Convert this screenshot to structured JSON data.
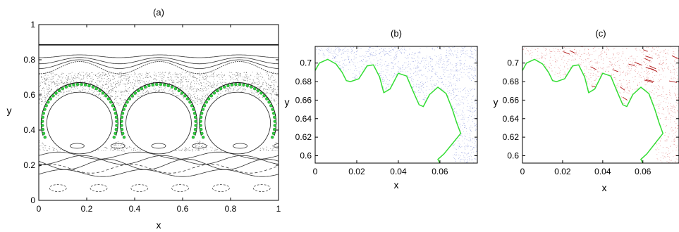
{
  "panels": [
    {
      "id": "a",
      "title": "(a)",
      "xlabel": "x",
      "ylabel": "y",
      "xlim": [
        0,
        1
      ],
      "ylim": [
        0,
        1
      ],
      "xticks": [
        "0",
        "0.2",
        "0.4",
        "0.6",
        "0.8",
        "1"
      ],
      "xtick_values": [
        0,
        0.2,
        0.4,
        0.6,
        0.8,
        1
      ],
      "yticks": [
        "0",
        "0.2",
        "0.4",
        "0.6",
        "0.8",
        "1"
      ],
      "ytick_values": [
        0,
        0.2,
        0.4,
        0.6,
        0.8,
        1
      ]
    },
    {
      "id": "b",
      "title": "(b)",
      "xlabel": "x",
      "ylabel": "y",
      "xlim": [
        0,
        0.078
      ],
      "ylim": [
        0.592,
        0.718
      ],
      "xticks": [
        "0",
        "0.02",
        "0.04",
        "0.06"
      ],
      "xtick_values": [
        0,
        0.02,
        0.04,
        0.06
      ],
      "yticks": [
        "0.6",
        "0.62",
        "0.64",
        "0.66",
        "0.68",
        "0.7"
      ],
      "ytick_values": [
        0.6,
        0.62,
        0.64,
        0.66,
        0.68,
        0.7
      ]
    },
    {
      "id": "c",
      "title": "(c)",
      "xlabel": "x",
      "ylabel": "y",
      "xlim": [
        0,
        0.078
      ],
      "ylim": [
        0.592,
        0.718
      ],
      "xticks": [
        "0",
        "0.02",
        "0.04",
        "0.06"
      ],
      "xtick_values": [
        0,
        0.02,
        0.04,
        0.06
      ],
      "yticks": [
        "0.6",
        "0.62",
        "0.64",
        "0.66",
        "0.68",
        "0.7"
      ],
      "ytick_values": [
        0.6,
        0.62,
        0.64,
        0.66,
        0.68,
        0.7
      ]
    }
  ],
  "chart_data": [
    {
      "type": "scatter",
      "title": "(a)",
      "xlabel": "x",
      "ylabel": "y",
      "xlim": [
        0,
        1
      ],
      "ylim": [
        0,
        1
      ],
      "grid": false,
      "colors": {
        "orbits": "#000000",
        "boundary_points": "#2ecc40"
      },
      "series": [
        {
          "x": [
            0.17,
            0.5,
            0.83
          ],
          "y": [
            0.44,
            0.44,
            0.44
          ]
        },
        {
          "x": [
            0,
            0.25,
            0.5,
            0.75,
            1
          ],
          "y": [
            0.885,
            0.885,
            0.885,
            0.885,
            0.885
          ]
        }
      ]
    },
    {
      "type": "line",
      "title": "(b)",
      "xlabel": "x",
      "ylabel": "y",
      "xlim": [
        0,
        0.078
      ],
      "ylim": [
        0.592,
        0.718
      ],
      "grid": false,
      "colors": {
        "boundary": "#33dd33",
        "background_points": "#4a5ec8"
      },
      "series": [
        {
          "x": [
            0,
            0.002,
            0.006,
            0.01,
            0.013,
            0.015,
            0.017,
            0.021,
            0.025,
            0.028,
            0.031,
            0.033,
            0.036,
            0.04,
            0.044,
            0.047,
            0.05,
            0.052,
            0.055,
            0.059,
            0.063,
            0.066,
            0.068,
            0.07,
            0.066,
            0.062,
            0.059,
            0.06
          ],
          "y": [
            0.692,
            0.7,
            0.704,
            0.699,
            0.69,
            0.681,
            0.68,
            0.683,
            0.697,
            0.698,
            0.685,
            0.668,
            0.672,
            0.689,
            0.686,
            0.67,
            0.655,
            0.653,
            0.666,
            0.674,
            0.667,
            0.65,
            0.636,
            0.624,
            0.613,
            0.602,
            0.596,
            0.592
          ]
        }
      ]
    },
    {
      "type": "line",
      "title": "(c)",
      "xlabel": "x",
      "ylabel": "y",
      "xlim": [
        0,
        0.078
      ],
      "ylim": [
        0.592,
        0.718
      ],
      "grid": false,
      "colors": {
        "boundary": "#33dd33",
        "background_points": "#cc3333"
      },
      "series": [
        {
          "x": [
            0,
            0.002,
            0.006,
            0.01,
            0.013,
            0.015,
            0.017,
            0.021,
            0.025,
            0.028,
            0.031,
            0.033,
            0.036,
            0.04,
            0.044,
            0.047,
            0.05,
            0.052,
            0.055,
            0.059,
            0.063,
            0.066,
            0.068,
            0.07,
            0.066,
            0.062,
            0.059,
            0.06
          ],
          "y": [
            0.692,
            0.7,
            0.704,
            0.699,
            0.69,
            0.681,
            0.68,
            0.683,
            0.697,
            0.698,
            0.685,
            0.668,
            0.672,
            0.689,
            0.686,
            0.67,
            0.655,
            0.653,
            0.666,
            0.674,
            0.667,
            0.65,
            0.636,
            0.624,
            0.613,
            0.602,
            0.596,
            0.592
          ]
        }
      ]
    }
  ]
}
